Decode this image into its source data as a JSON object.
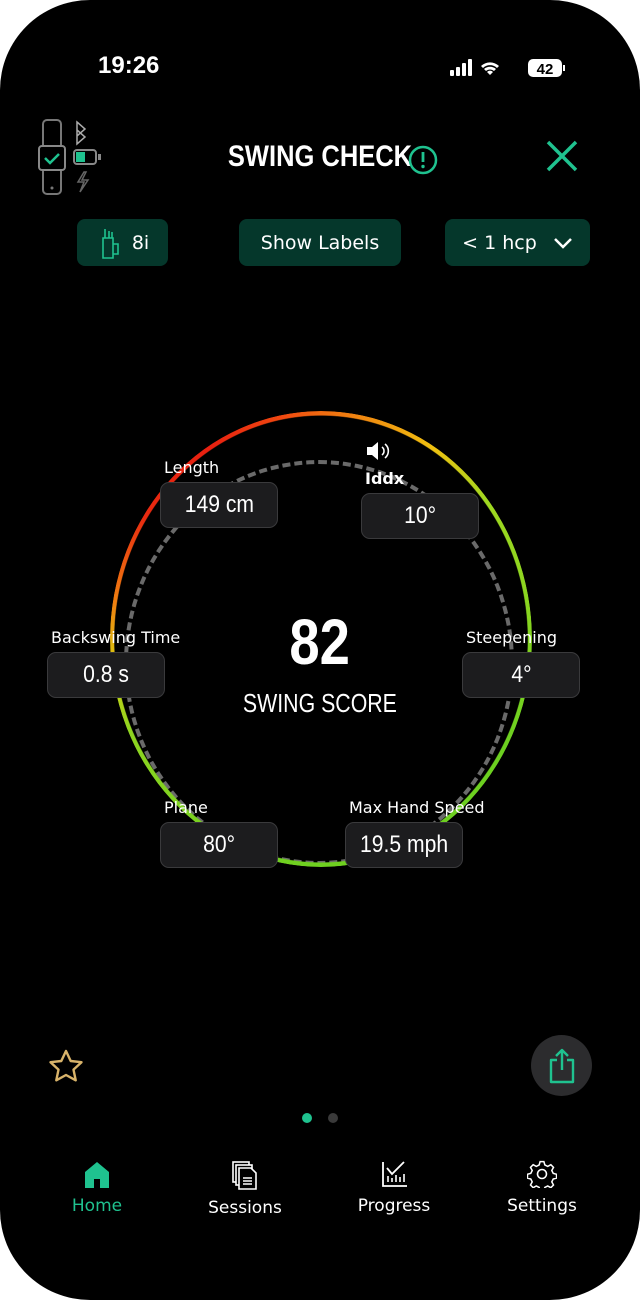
{
  "status": {
    "time": "19:26",
    "battery": "42"
  },
  "header": {
    "title": "SWING CHECK",
    "close": "close"
  },
  "toolbar": {
    "club": "8i",
    "show_labels": "Show Labels",
    "handicap": "< 1 hcp"
  },
  "metrics": {
    "length": {
      "label": "Length",
      "value": "149 cm"
    },
    "iddx": {
      "label": "Iddx",
      "value": "10°"
    },
    "backswing": {
      "label": "Backswing Time",
      "value": "0.8 s"
    },
    "steepening": {
      "label": "Steepening",
      "value": "4°"
    },
    "plane": {
      "label": "Plane",
      "value": "80°"
    },
    "hand_speed": {
      "label": "Max Hand Speed",
      "value": "19.5 mph"
    }
  },
  "score": {
    "value": "82",
    "label": "SWING SCORE"
  },
  "pager": {
    "count": 2,
    "active": 1
  },
  "nav": [
    {
      "label": "Home",
      "active": true
    },
    {
      "label": "Sessions"
    },
    {
      "label": "Progress"
    },
    {
      "label": "Settings"
    }
  ],
  "colors": {
    "accent": "#1fc28f",
    "pill_bg": "#05372b",
    "star": "#d8b36a"
  }
}
